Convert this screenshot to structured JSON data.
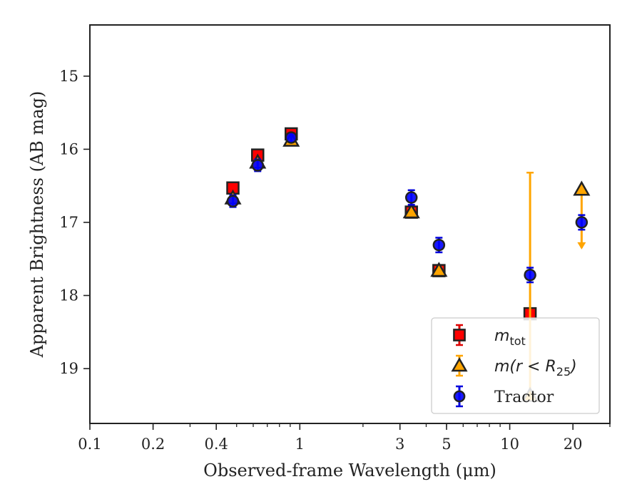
{
  "chart_data": {
    "type": "scatter",
    "xlabel": "Observed-frame Wavelength (μm)",
    "ylabel": "Apparent Brightness (AB mag)",
    "xscale": "log",
    "xlim": [
      0.1,
      30
    ],
    "ylim": [
      19.75,
      14.3
    ],
    "y_inverted": true,
    "x_ticks": [
      {
        "value": 0.1,
        "label": "0.1"
      },
      {
        "value": 0.2,
        "label": "0.2"
      },
      {
        "value": 0.4,
        "label": "0.4"
      },
      {
        "value": 1,
        "label": "1"
      },
      {
        "value": 3,
        "label": "3"
      },
      {
        "value": 5,
        "label": "5"
      },
      {
        "value": 10,
        "label": "10"
      },
      {
        "value": 20,
        "label": "20"
      }
    ],
    "y_ticks": [
      {
        "value": 15,
        "label": "15"
      },
      {
        "value": 16,
        "label": "16"
      },
      {
        "value": 17,
        "label": "17"
      },
      {
        "value": 18,
        "label": "18"
      },
      {
        "value": 19,
        "label": "19"
      }
    ],
    "grid": false,
    "legend_position": "lower-right",
    "series": [
      {
        "name": "m_tot",
        "label_main": "m",
        "label_sub": "tot",
        "marker": "square",
        "color": "#ff0000",
        "edge_color": "#222222",
        "errbar_color": "#dd0000",
        "points": [
          {
            "x": 0.48,
            "y": 16.53,
            "err": 0.07
          },
          {
            "x": 0.63,
            "y": 16.08,
            "err": 0.07
          },
          {
            "x": 0.91,
            "y": 15.79,
            "err": 0.05
          },
          {
            "x": 3.4,
            "y": 16.86,
            "err": 0.05
          },
          {
            "x": 4.6,
            "y": 17.66,
            "err": 0.06
          },
          {
            "x": 12.5,
            "y": 18.25,
            "err": 0.06
          }
        ]
      },
      {
        "name": "m(r < R_25)",
        "label_main": "m(r < R",
        "label_sub": "25",
        "label_end": ")",
        "marker": "triangle",
        "color": "#ffa500",
        "edge_color": "#222222",
        "errbar_color": "#ffa500",
        "points": [
          {
            "x": 0.48,
            "y": 16.67,
            "err": 0.04
          },
          {
            "x": 0.63,
            "y": 16.18,
            "err": 0.04
          },
          {
            "x": 0.91,
            "y": 15.88,
            "err": 0.04
          },
          {
            "x": 3.4,
            "y": 16.86,
            "err": 0.04
          },
          {
            "x": 4.6,
            "y": 17.66,
            "err": 0.04
          },
          {
            "x": 12.5,
            "y": 19.37,
            "err_low": 3.05,
            "err_high": 0
          },
          {
            "x": 22,
            "y": 16.55,
            "upper_limit": true,
            "arrow_to": 17.35
          }
        ]
      },
      {
        "name": "Tractor",
        "label_main": "Tractor",
        "marker": "circle",
        "color": "#0000ff",
        "edge_color": "#222222",
        "errbar_color": "#0000dd",
        "points": [
          {
            "x": 0.48,
            "y": 16.71,
            "err": 0.08
          },
          {
            "x": 0.63,
            "y": 16.22,
            "err": 0.08
          },
          {
            "x": 0.91,
            "y": 15.84,
            "err": 0.06
          },
          {
            "x": 3.4,
            "y": 16.66,
            "err": 0.1
          },
          {
            "x": 4.6,
            "y": 17.31,
            "err": 0.1
          },
          {
            "x": 12.5,
            "y": 17.72,
            "err": 0.1
          },
          {
            "x": 22,
            "y": 17.0,
            "err": 0.1
          }
        ]
      }
    ]
  }
}
